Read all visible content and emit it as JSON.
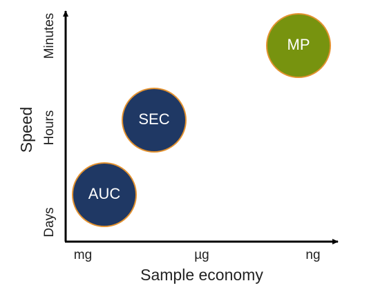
{
  "x_axis": {
    "title": "Sample economy",
    "ticks": [
      "mg",
      "µg",
      "ng"
    ]
  },
  "y_axis": {
    "title": "Speed",
    "ticks": [
      "Days",
      "Hours",
      "Minutes"
    ]
  },
  "nodes": [
    {
      "label": "AUC"
    },
    {
      "label": "SEC"
    },
    {
      "label": "MP"
    }
  ]
}
